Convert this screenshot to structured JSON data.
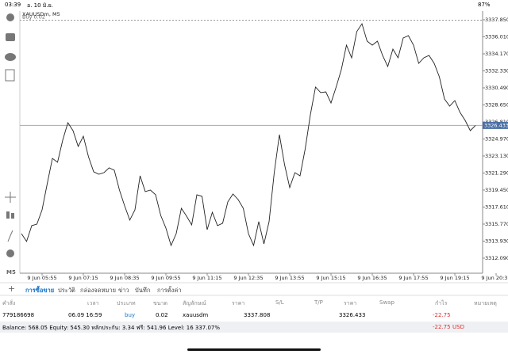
{
  "status_bar": {
    "time": "03:39",
    "date": "อ. 10 มิ.ย.",
    "battery": "87%"
  },
  "chart": {
    "type": "line",
    "symbol_label": "XAUUSDm, M5",
    "order_label": "Buy 0.02",
    "order_price": 3337.808,
    "current_price": 3326.433,
    "color": "#222222",
    "categories": [
      null,
      null,
      null,
      null,
      "9 Jun 05:55",
      null,
      null,
      null,
      null,
      null,
      null,
      null,
      "9 Jun 07:15",
      null,
      null,
      null,
      null,
      null,
      null,
      null,
      "9 Jun 08:35",
      null,
      null,
      null,
      null,
      null,
      null,
      null,
      "9 Jun 09:55",
      null,
      null,
      null,
      null,
      null,
      null,
      null,
      "9 Jun 11:15",
      null,
      null,
      null,
      null,
      null,
      null,
      null,
      "9 Jun 12:35",
      null,
      null,
      null,
      null,
      null,
      null,
      null,
      "9 Jun 13:55",
      null,
      null,
      null,
      null,
      null,
      null,
      null,
      "9 Jun 15:15",
      null,
      null,
      null,
      null,
      null,
      null,
      null,
      "9 Jun 16:35",
      null,
      null,
      null,
      null,
      null,
      null,
      null,
      "9 Jun 17:55",
      null,
      null,
      null,
      null,
      null,
      null,
      null,
      "9 Jun 19:15",
      null,
      null,
      null,
      null,
      null,
      null,
      null,
      "9 Jun 20:35"
    ],
    "values": [
      3314.74,
      3313.89,
      3315.6,
      3315.77,
      3317.31,
      3320.13,
      3322.87,
      3322.45,
      3324.84,
      3326.72,
      3325.87,
      3324.16,
      3325.27,
      3323.04,
      3321.42,
      3321.16,
      3321.33,
      3321.85,
      3321.59,
      3319.45,
      3317.74,
      3316.2,
      3317.31,
      3320.99,
      3319.28,
      3319.45,
      3318.94,
      3316.71,
      3315.34,
      3313.46,
      3314.74,
      3317.48,
      3316.63,
      3315.68,
      3318.94,
      3318.77,
      3315.17,
      3317.05,
      3315.6,
      3315.86,
      3318.17,
      3319.02,
      3318.42,
      3317.48,
      3314.74,
      3313.46,
      3316.03,
      3313.63,
      3316.03,
      3321.33,
      3325.44,
      3322.19,
      3319.71,
      3321.33,
      3320.99,
      3323.9,
      3327.58,
      3330.58,
      3329.98,
      3330.06,
      3328.86,
      3330.58,
      3332.46,
      3335.11,
      3333.74,
      3336.57,
      3337.42,
      3335.54,
      3335.11,
      3335.54,
      3334.0,
      3332.8,
      3334.68,
      3333.74,
      3335.88,
      3336.14,
      3335.11,
      3333.14,
      3333.74,
      3334.0,
      3333.14,
      3331.69,
      3329.29,
      3328.52,
      3329.12,
      3327.84,
      3326.98,
      3325.87,
      3326.43,
      null,
      null,
      null,
      null
    ],
    "ylim": [
      3310.46,
      3338.79
    ],
    "yticks": [
      {
        "value": 3337.85,
        "label": "3337.850"
      },
      {
        "value": 3336.01,
        "label": "3336.010"
      },
      {
        "value": 3334.17,
        "label": "3334.170"
      },
      {
        "value": 3332.33,
        "label": "3332.330"
      },
      {
        "value": 3330.49,
        "label": "3330.490"
      },
      {
        "value": 3328.65,
        "label": "3328.650"
      },
      {
        "value": 3326.81,
        "label": "3326.810"
      },
      {
        "value": 3324.97,
        "label": "3324.970"
      },
      {
        "value": 3323.13,
        "label": "3323.130"
      },
      {
        "value": 3321.29,
        "label": "3321.290"
      },
      {
        "value": 3319.45,
        "label": "3319.450"
      },
      {
        "value": 3317.61,
        "label": "3317.610"
      },
      {
        "value": 3315.77,
        "label": "3315.770"
      },
      {
        "value": 3313.93,
        "label": "3313.930"
      },
      {
        "value": 3312.09,
        "label": "3312.090"
      }
    ]
  },
  "tabs": [
    "การซื้อขาย",
    "ประวัติ",
    "กล่องจดหมาย",
    "ข่าว",
    "บันทึก",
    "การตั้งค่า"
  ],
  "table": {
    "columns": [
      "คำสั่ง",
      "เวลา",
      "ประเภท",
      "ขนาด",
      "สัญลักษณ์",
      "ราคา",
      "S/L",
      "T/P",
      "ราคา",
      "Swap",
      "กำไร",
      "หมายเหตุ"
    ],
    "rows": [
      [
        "779186698",
        "06.09 16:59",
        "buy",
        "0.02",
        "xauusdm",
        "3337.808",
        "",
        "",
        "3326.433",
        "",
        "-22.75",
        ""
      ]
    ]
  },
  "footer": {
    "summary": "Balance: 568.05 Equity: 545.30 หลักประกัน: 3.34 ฟรี: 541.96 Level: 16 337.07%",
    "profit": "-22.75",
    "currency": "USD"
  }
}
